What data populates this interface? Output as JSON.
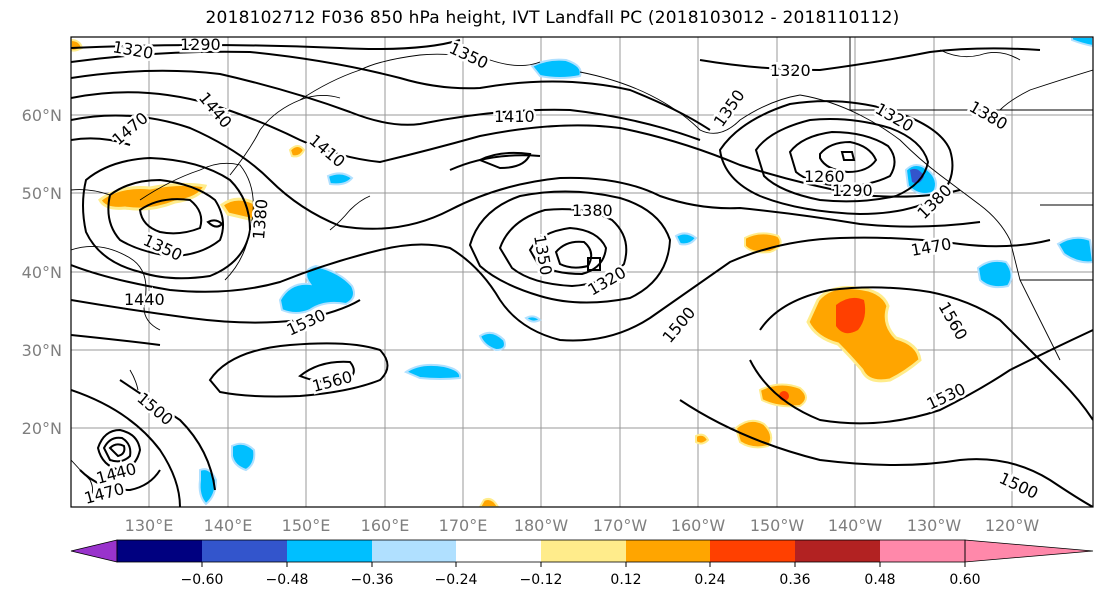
{
  "title": "2018102712 F036 850 hPa height, IVT Landfall PC (2018103012 - 2018110112)",
  "lat_labels": [
    "60°N",
    "50°N",
    "40°N",
    "30°N",
    "20°N"
  ],
  "lon_labels": [
    "130°E",
    "140°E",
    "150°E",
    "160°E",
    "170°E",
    "180°W",
    "170°W",
    "160°W",
    "150°W",
    "140°W",
    "130°W",
    "120°W"
  ],
  "colorbar": {
    "colors": [
      "#9933cc",
      "#000080",
      "#3355cc",
      "#00bfff",
      "#b0e0ff",
      "#ffffff",
      "#ffec8b",
      "#ffa500",
      "#ff4000",
      "#b22222",
      "#ff88aa"
    ],
    "tick_labels": [
      "−0.60",
      "−0.48",
      "−0.36",
      "−0.24",
      "−0.12",
      "0.12",
      "0.24",
      "0.36",
      "0.48",
      "0.60"
    ]
  },
  "contour_labels": [
    {
      "text": "1320"
    },
    {
      "text": "1290"
    },
    {
      "text": "1350"
    },
    {
      "text": "1470"
    },
    {
      "text": "1440"
    },
    {
      "text": "1410"
    },
    {
      "text": "1380"
    },
    {
      "text": "1350"
    },
    {
      "text": "1440"
    },
    {
      "text": "1530"
    },
    {
      "text": "1560"
    },
    {
      "text": "1500"
    },
    {
      "text": "1440"
    },
    {
      "text": "1470"
    },
    {
      "text": "1410"
    },
    {
      "text": "1380"
    },
    {
      "text": "1350"
    },
    {
      "text": "1320"
    },
    {
      "text": "1500"
    },
    {
      "text": "1320"
    },
    {
      "text": "1350"
    },
    {
      "text": "1320"
    },
    {
      "text": "1260"
    },
    {
      "text": "1290"
    },
    {
      "text": "1380"
    },
    {
      "text": "1470"
    },
    {
      "text": "1380"
    },
    {
      "text": "1560"
    },
    {
      "text": "1530"
    },
    {
      "text": "1500"
    }
  ]
}
